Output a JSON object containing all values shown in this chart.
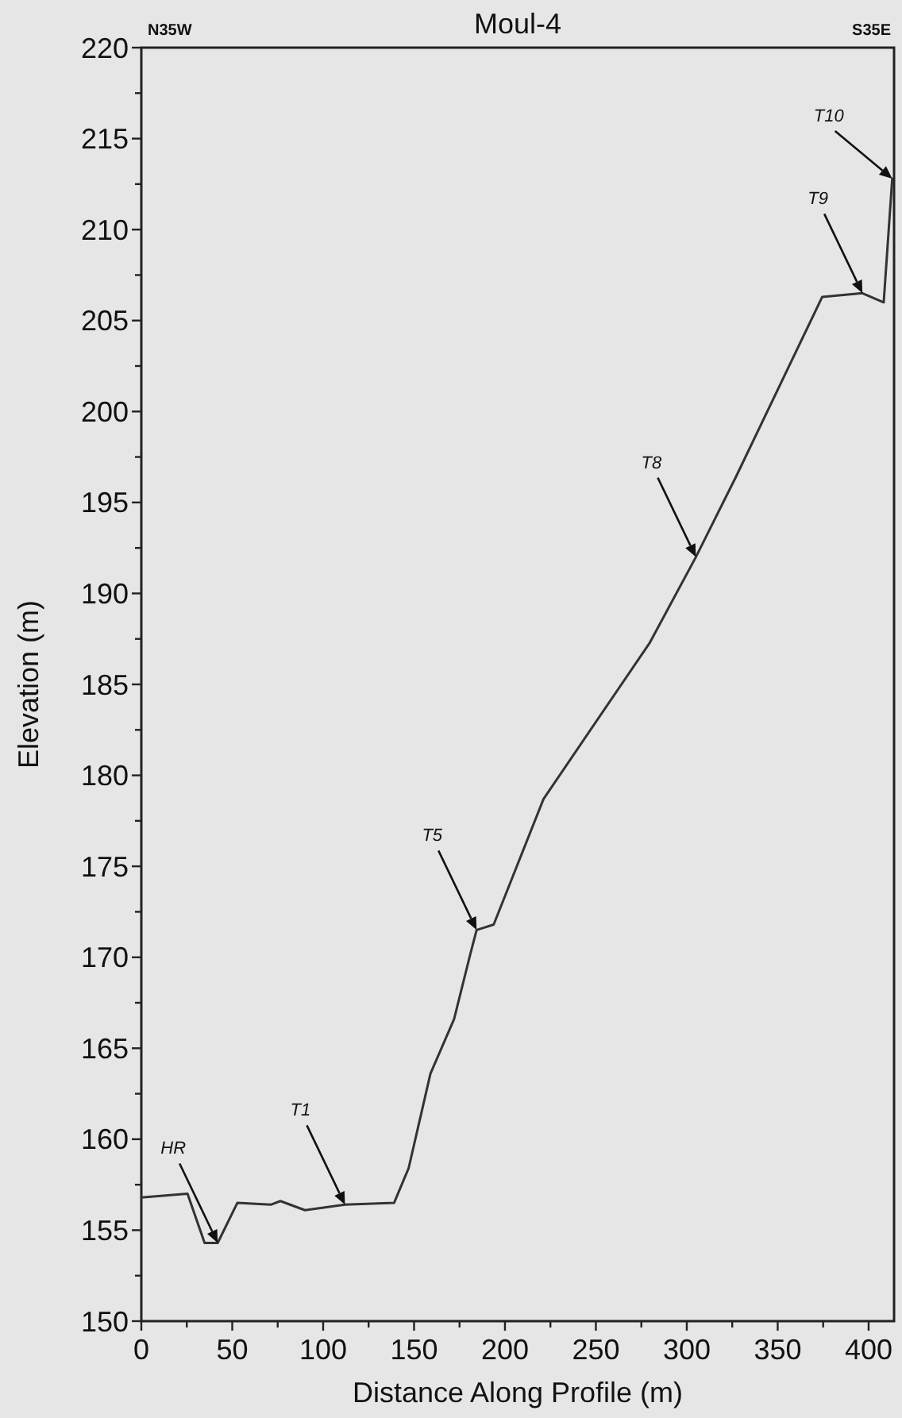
{
  "chart_data": {
    "type": "line",
    "title": "Moul-4",
    "xlabel": "Distance Along Profile (m)",
    "ylabel": "Elevation (m)",
    "x": [
      0,
      25.4,
      34.8,
      42,
      52.8,
      71.2,
      76.5,
      90,
      112,
      139,
      147,
      159,
      172,
      181,
      184.4,
      193.8,
      221.2,
      279.7,
      305,
      327,
      374.5,
      396.6,
      408.3,
      413
    ],
    "series": [
      {
        "color": "#333333",
        "values": [
          156.8,
          157.0,
          154.3,
          154.3,
          156.5,
          156.4,
          156.6,
          156.1,
          156.4,
          156.5,
          158.4,
          163.6,
          166.6,
          170.2,
          171.5,
          171.8,
          178.7,
          187.3,
          192.0,
          196.4,
          206.3,
          206.5,
          206.0,
          212.8
        ]
      }
    ],
    "xlim": [
      0,
      414
    ],
    "ylim": [
      150,
      220
    ],
    "xticks": [
      0,
      {
        "value": 25,
        "label": null
      },
      50,
      {
        "value": 75,
        "label": null
      },
      100,
      {
        "value": 125,
        "label": null
      },
      150,
      {
        "value": 175,
        "label": null
      },
      200,
      {
        "value": 225,
        "label": null
      },
      250,
      {
        "value": 275,
        "label": null
      },
      300,
      {
        "value": 325,
        "label": null
      },
      350,
      {
        "value": 375,
        "label": null
      },
      400
    ],
    "yticks": [
      150,
      {
        "value": 152.5,
        "label": null
      },
      155,
      {
        "value": 157.5,
        "label": null
      },
      160,
      {
        "value": 162.5,
        "label": null
      },
      165,
      {
        "value": 167.5,
        "label": null
      },
      170,
      {
        "value": 172.5,
        "label": null
      },
      175,
      {
        "value": 177.5,
        "label": null
      },
      180,
      {
        "value": 182.5,
        "label": null
      },
      185,
      {
        "value": 187.5,
        "label": null
      },
      190,
      {
        "value": 192.5,
        "label": null
      },
      195,
      {
        "value": 197.5,
        "label": null
      },
      200,
      {
        "value": 202.5,
        "label": null
      },
      205,
      {
        "value": 207.5,
        "label": null
      },
      210,
      {
        "value": 212.5,
        "label": null
      },
      215,
      {
        "value": 217.5,
        "label": null
      },
      220
    ],
    "grid": false,
    "marker": "none",
    "line_style": "solid",
    "annotations": [
      "N35W",
      "S35E",
      {
        "text": "HR",
        "x": 42,
        "y": 154.3
      },
      {
        "text": "T1",
        "x": 112,
        "y": 156.4
      },
      {
        "text": "T5",
        "x": 184.4,
        "y": 171.5
      },
      {
        "text": "T8",
        "x": 305,
        "y": 192.0
      },
      {
        "text": "T9",
        "x": 396.6,
        "y": 206.5
      },
      {
        "text": "T10",
        "x": 413,
        "y": 212.8
      }
    ]
  }
}
